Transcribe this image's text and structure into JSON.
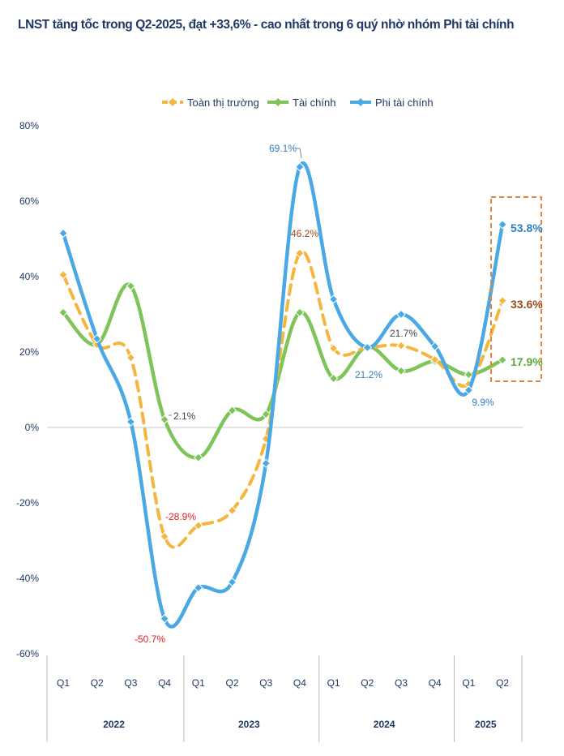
{
  "title": "LNST tăng tốc trong Q2-2025, đạt +33,6% - cao nhất trong 6 quý nhờ nhóm Phi tài chính",
  "colors": {
    "toan_thi_truong": "#f4b63f",
    "tai_chinh": "#7ec45a",
    "phi_tai_chinh": "#4aa8e4",
    "highlight_box": "#e8843a",
    "neg_label": "#e02020",
    "toan_label": "#9b4a1a",
    "tai_label": "#5aa83c",
    "phi_label": "#2f7fc1"
  },
  "chart_data": {
    "type": "line",
    "title": "LNST tăng tốc trong Q2-2025, đạt +33,6% - cao nhất trong 6 quý nhờ nhóm Phi tài chính",
    "categories": [
      "Q1",
      "Q2",
      "Q3",
      "Q4",
      "Q1",
      "Q2",
      "Q3",
      "Q4",
      "Q1",
      "Q2",
      "Q3",
      "Q4",
      "Q1",
      "Q2"
    ],
    "year_groups": [
      {
        "label": "2022",
        "span": 4
      },
      {
        "label": "2023",
        "span": 4
      },
      {
        "label": "2024",
        "span": 4
      },
      {
        "label": "2025",
        "span": 2
      }
    ],
    "yticks": [
      "80%",
      "60%",
      "40%",
      "20%",
      "0%",
      "-20%",
      "-40%",
      "-60%"
    ],
    "ylim": [
      -60,
      80
    ],
    "grid": false,
    "legend": "top-center",
    "series": [
      {
        "name": "Toàn thị trường",
        "style": "dashed",
        "color_key": "toan_thi_truong",
        "values": [
          40.5,
          22.0,
          18.5,
          -28.9,
          -26.0,
          -22.0,
          -3.0,
          46.2,
          21.0,
          21.2,
          21.7,
          18.0,
          11.5,
          33.6
        ]
      },
      {
        "name": "Tài chính",
        "style": "solid",
        "color_key": "tai_chinh",
        "values": [
          30.5,
          22.0,
          37.5,
          2.1,
          -8.0,
          4.5,
          3.5,
          30.5,
          13.0,
          21.5,
          15.0,
          17.5,
          14.0,
          17.9
        ]
      },
      {
        "name": "Phi tài chính",
        "style": "solid",
        "color_key": "phi_tai_chinh",
        "values": [
          51.5,
          23.5,
          1.5,
          -50.7,
          -42.5,
          -41.0,
          -9.5,
          69.1,
          34.0,
          21.2,
          30.0,
          21.5,
          9.9,
          53.8
        ]
      }
    ],
    "annotations": {
      "phi_q4_2022": "-50.7%",
      "toan_q4_2022": "-28.9%",
      "tai_q4_2022": "2.1%",
      "phi_q4_2023": "69.1%",
      "toan_q4_2023": "46.2%",
      "phi_q2_2024": "21.2%",
      "toan_q3_2024": "21.7%",
      "phi_q1_2025": "9.9%",
      "phi_q2_2025": "53.8%",
      "toan_q2_2025": "33.6%",
      "tai_q2_2025": "17.9%"
    }
  }
}
